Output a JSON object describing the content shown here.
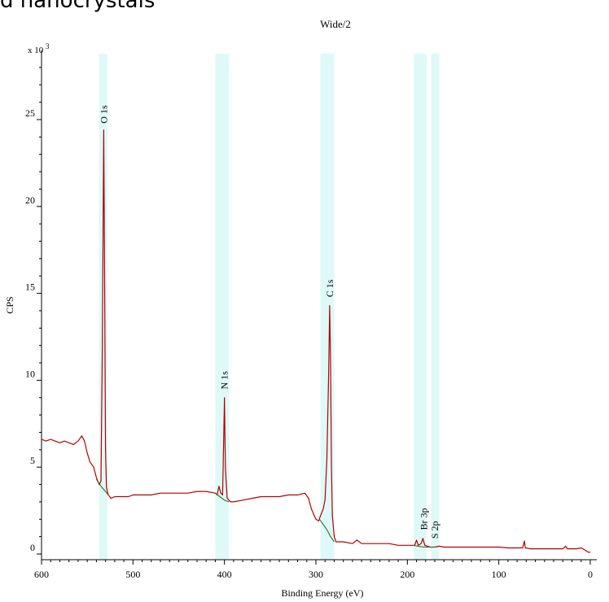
{
  "page": {
    "clipped_title": "d nanocrystals"
  },
  "chart_data": {
    "type": "line",
    "title": "Wide/2",
    "xlabel": "Binding Energy (eV)",
    "ylabel": "CPS",
    "y_multiplier": "x 10",
    "y_multiplier_exp": "3",
    "xlim": [
      600,
      0
    ],
    "ylim": [
      0,
      28
    ],
    "x_ticks": [
      600,
      500,
      400,
      300,
      200,
      100,
      0
    ],
    "x_tick_labels": [
      "600",
      "500",
      "400",
      "300",
      "200",
      "100",
      "0"
    ],
    "y_ticks": [
      0,
      5,
      10,
      15,
      20,
      25
    ],
    "y_tick_labels": [
      "0",
      "5",
      "10",
      "15",
      "20",
      "25"
    ],
    "grid": false,
    "regions": [
      {
        "from": 537,
        "to": 528
      },
      {
        "from": 410,
        "to": 395
      },
      {
        "from": 295,
        "to": 280
      },
      {
        "from": 193,
        "to": 179
      },
      {
        "from": 174,
        "to": 165
      }
    ],
    "peak_labels": [
      {
        "text": "O 1s",
        "x": 532,
        "y": 24.5
      },
      {
        "text": "N 1s",
        "x": 400,
        "y": 9.2
      },
      {
        "text": "C 1s",
        "x": 285,
        "y": 14.5
      },
      {
        "text": "Br 3p",
        "x": 182,
        "y": 1.1
      },
      {
        "text": "S 2p",
        "x": 170,
        "y": 0.6
      }
    ],
    "series": [
      {
        "color": "#b30000",
        "points": [
          [
            600,
            6.6
          ],
          [
            595,
            6.5
          ],
          [
            590,
            6.6
          ],
          [
            585,
            6.5
          ],
          [
            580,
            6.4
          ],
          [
            575,
            6.5
          ],
          [
            570,
            6.4
          ],
          [
            565,
            6.3
          ],
          [
            560,
            6.5
          ],
          [
            556,
            6.8
          ],
          [
            553,
            6.5
          ],
          [
            550,
            5.8
          ],
          [
            547,
            5.3
          ],
          [
            543,
            5.0
          ],
          [
            540,
            4.4
          ],
          [
            537,
            4.0
          ],
          [
            535,
            4.2
          ],
          [
            533.5,
            12.0
          ],
          [
            532,
            24.4
          ],
          [
            531,
            16.0
          ],
          [
            530,
            6.0
          ],
          [
            529,
            3.8
          ],
          [
            527,
            3.4
          ],
          [
            524,
            3.2
          ],
          [
            520,
            3.3
          ],
          [
            515,
            3.3
          ],
          [
            510,
            3.3
          ],
          [
            505,
            3.3
          ],
          [
            500,
            3.4
          ],
          [
            490,
            3.4
          ],
          [
            480,
            3.4
          ],
          [
            470,
            3.5
          ],
          [
            460,
            3.5
          ],
          [
            450,
            3.5
          ],
          [
            440,
            3.5
          ],
          [
            430,
            3.6
          ],
          [
            420,
            3.6
          ],
          [
            410,
            3.5
          ],
          [
            408,
            3.4
          ],
          [
            406,
            3.9
          ],
          [
            404,
            3.5
          ],
          [
            402,
            3.4
          ],
          [
            401,
            6.0
          ],
          [
            400,
            9.0
          ],
          [
            399,
            5.0
          ],
          [
            397,
            3.2
          ],
          [
            393,
            3.0
          ],
          [
            390,
            3.0
          ],
          [
            380,
            3.1
          ],
          [
            370,
            3.2
          ],
          [
            360,
            3.3
          ],
          [
            350,
            3.3
          ],
          [
            340,
            3.3
          ],
          [
            330,
            3.4
          ],
          [
            320,
            3.4
          ],
          [
            312,
            3.5
          ],
          [
            308,
            3.2
          ],
          [
            305,
            2.6
          ],
          [
            300,
            2.0
          ],
          [
            297,
            1.9
          ],
          [
            295,
            2.2
          ],
          [
            292,
            2.6
          ],
          [
            290,
            3.1
          ],
          [
            288,
            5.5
          ],
          [
            286,
            10.5
          ],
          [
            285,
            14.3
          ],
          [
            284,
            11.0
          ],
          [
            283,
            5.0
          ],
          [
            282,
            2.2
          ],
          [
            280,
            1.0
          ],
          [
            278,
            0.7
          ],
          [
            270,
            0.7
          ],
          [
            260,
            0.6
          ],
          [
            255,
            0.8
          ],
          [
            250,
            0.6
          ],
          [
            240,
            0.6
          ],
          [
            230,
            0.6
          ],
          [
            220,
            0.6
          ],
          [
            210,
            0.5
          ],
          [
            200,
            0.5
          ],
          [
            192,
            0.5
          ],
          [
            190,
            0.8
          ],
          [
            188,
            0.5
          ],
          [
            185,
            0.6
          ],
          [
            183,
            0.9
          ],
          [
            181,
            0.5
          ],
          [
            175,
            0.4
          ],
          [
            170,
            0.4
          ],
          [
            165,
            0.45
          ],
          [
            160,
            0.4
          ],
          [
            150,
            0.4
          ],
          [
            140,
            0.4
          ],
          [
            130,
            0.4
          ],
          [
            120,
            0.4
          ],
          [
            110,
            0.4
          ],
          [
            100,
            0.4
          ],
          [
            90,
            0.35
          ],
          [
            80,
            0.35
          ],
          [
            74,
            0.35
          ],
          [
            72,
            0.75
          ],
          [
            71,
            0.35
          ],
          [
            65,
            0.3
          ],
          [
            55,
            0.3
          ],
          [
            45,
            0.3
          ],
          [
            35,
            0.3
          ],
          [
            30,
            0.3
          ],
          [
            27,
            0.45
          ],
          [
            25,
            0.3
          ],
          [
            15,
            0.3
          ],
          [
            10,
            0.35
          ],
          [
            8,
            0.3
          ],
          [
            5,
            0.2
          ],
          [
            2,
            0.1
          ],
          [
            0,
            0.1
          ]
        ]
      },
      {
        "color": "#3a6b1f",
        "points": [
          [
            540,
            4.3
          ],
          [
            535,
            3.9
          ],
          [
            530,
            3.6
          ],
          [
            527,
            3.4
          ]
        ]
      },
      {
        "color": "#3a6b1f",
        "points": [
          [
            410,
            3.5
          ],
          [
            405,
            3.3
          ],
          [
            400,
            3.1
          ],
          [
            395,
            3.0
          ]
        ]
      },
      {
        "color": "#3a6b1f",
        "points": [
          [
            296,
            2.0
          ],
          [
            292,
            1.7
          ],
          [
            288,
            1.4
          ],
          [
            284,
            1.0
          ],
          [
            280,
            0.7
          ]
        ]
      },
      {
        "color": "#3a6b1f",
        "points": [
          [
            194,
            0.5
          ],
          [
            188,
            0.45
          ],
          [
            182,
            0.4
          ],
          [
            176,
            0.4
          ],
          [
            168,
            0.4
          ]
        ]
      }
    ]
  }
}
